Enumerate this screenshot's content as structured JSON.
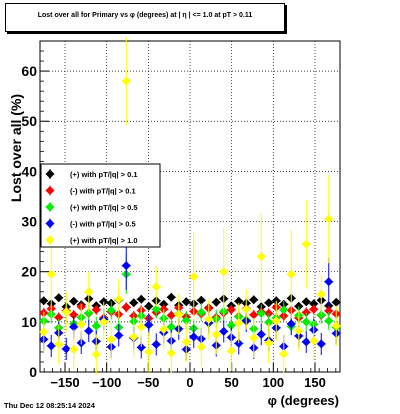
{
  "title": "Lost over all for Primary vs φ (degrees) at |  η  | <= 1.0 at pT > 0.11",
  "footer": "Thu Dec 12 08:25:14 2024",
  "chart_data": {
    "type": "scatter",
    "xlabel": "φ (degrees)",
    "ylabel": "Lost over all (%)",
    "xlim": [
      -180,
      180
    ],
    "ylim": [
      0,
      66
    ],
    "xticks": [
      -150,
      -100,
      -50,
      0,
      50,
      100,
      150
    ],
    "yticks": [
      0,
      10,
      20,
      30,
      40,
      50,
      60
    ],
    "grid": true,
    "legend_position": "middle-left",
    "series": [
      {
        "name": "(+) with pT/|q| > 0.1",
        "color": "#000000",
        "err": 0.8,
        "y": [
          14.2,
          13.6,
          14.8,
          13.0,
          14.1,
          13.4,
          14.6,
          13.2,
          14.0,
          13.7,
          14.4,
          12.9,
          13.8,
          14.5,
          13.1,
          14.2,
          13.5,
          14.9,
          13.3,
          14.0,
          13.6,
          14.3,
          12.8,
          13.9,
          14.6,
          13.2,
          14.1,
          13.7,
          14.4,
          13.0,
          13.8,
          14.2,
          13.5,
          14.7,
          13.1,
          14.0,
          13.6,
          14.3,
          13.2,
          13.9
        ]
      },
      {
        "name": "(-) with pT/|q| > 0.1",
        "color": "#ff0000",
        "err": 1.0,
        "y": [
          11.8,
          12.6,
          10.9,
          12.2,
          11.4,
          13.0,
          11.7,
          12.4,
          10.8,
          12.0,
          11.5,
          12.9,
          11.2,
          12.3,
          10.7,
          11.9,
          12.5,
          11.3,
          12.8,
          11.0,
          12.1,
          11.6,
          12.7,
          10.9,
          11.8,
          12.4,
          11.1,
          12.6,
          11.4,
          12.0,
          11.7,
          12.9,
          11.2,
          12.3,
          10.8,
          11.9,
          12.5,
          11.3,
          12.2,
          11.6
        ]
      },
      {
        "name": "(+) with pT/|q| > 0.5",
        "color": "#00ee00",
        "err": 1.8,
        "y": [
          10.2,
          11.5,
          8.8,
          12.0,
          9.6,
          10.9,
          11.8,
          9.2,
          10.5,
          12.3,
          8.9,
          19.5,
          10.1,
          11.2,
          9.4,
          12.5,
          10.7,
          9.0,
          11.6,
          10.3,
          8.7,
          11.9,
          9.8,
          10.6,
          12.1,
          9.3,
          11.0,
          10.4,
          8.6,
          11.7,
          9.9,
          10.8,
          12.4,
          9.1,
          11.3,
          10.0,
          9.5,
          11.4,
          10.2,
          8.9
        ]
      },
      {
        "name": "(-) with pT/|q| > 0.5",
        "color": "#0000ff",
        "err": 2.2,
        "y": [
          6.5,
          5.2,
          7.8,
          4.6,
          9.0,
          5.8,
          8.2,
          6.1,
          10.5,
          5.0,
          7.3,
          21.2,
          6.8,
          4.9,
          9.4,
          5.5,
          7.9,
          6.2,
          8.6,
          4.5,
          7.0,
          6.6,
          9.8,
          5.3,
          8.1,
          6.9,
          5.7,
          10.2,
          4.8,
          7.5,
          6.3,
          8.8,
          5.1,
          9.6,
          7.2,
          6.0,
          8.4,
          5.6,
          18.0,
          7.7
        ]
      },
      {
        "name": "(+) with pT/|q| > 1.0",
        "color": "#ffff00",
        "err": 4.0,
        "y": [
          8.0,
          19.5,
          5.5,
          12.0,
          4.5,
          9.5,
          16.0,
          3.5,
          10.0,
          6.5,
          14.5,
          58.0,
          7.0,
          9.0,
          4.0,
          17.0,
          8.5,
          3.8,
          11.5,
          6.0,
          19.0,
          5.0,
          10.5,
          7.5,
          20.0,
          4.2,
          9.8,
          12.5,
          6.8,
          23.0,
          5.8,
          10.2,
          3.6,
          19.5,
          8.2,
          25.5,
          6.2,
          15.5,
          30.5,
          9.2
        ]
      }
    ]
  }
}
